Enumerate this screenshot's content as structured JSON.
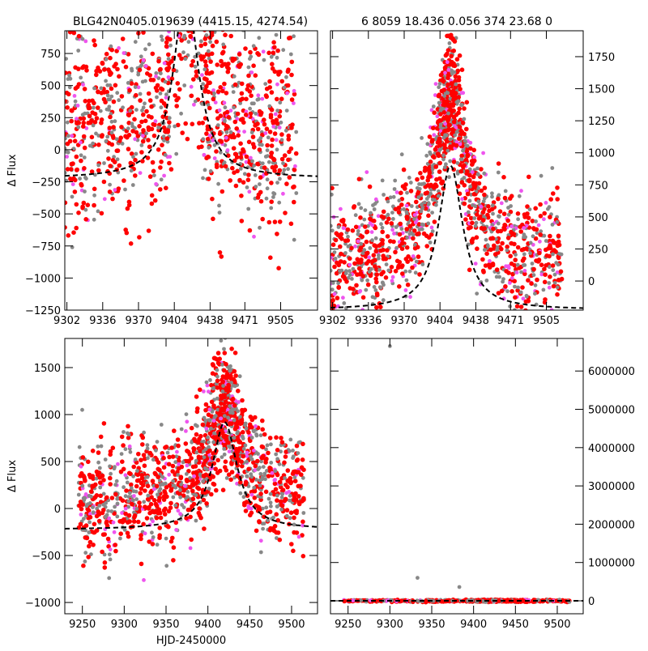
{
  "title_left": "BLG42N0405.019639 (4415.15, 4274.54)",
  "title_right": "6 8059 18.436 0.056 374 23.68    0",
  "colors": {
    "gray": "#888888",
    "magenta": "#ee55ee",
    "red": "#ff0000",
    "model": "#000000"
  },
  "chart_data": [
    {
      "type": "scatter",
      "panel": "top-left",
      "ylabel": "Δ Flux",
      "xlabel": "",
      "xlim": [
        9300,
        9540
      ],
      "ylim": [
        -1250,
        927
      ],
      "xticks": [
        9302,
        9336,
        9370,
        9404,
        9438,
        9471,
        9505
      ],
      "xtick_labels": [
        "9302",
        "9336",
        "9370",
        "9404",
        "9438",
        "9471",
        "9505"
      ],
      "yticks": [
        750,
        500,
        250,
        0,
        -250,
        -500,
        -750,
        -1000,
        -1250
      ],
      "ytick_labels": [
        "750",
        "500",
        "250",
        "0",
        "−250",
        "−500",
        "−750",
        "−1000",
        "−1250"
      ],
      "ytick_side": "left",
      "model": {
        "t0": 9415,
        "tE": 14,
        "baseline": -225,
        "peak": 1250
      },
      "scatter": {
        "x_range": [
          9300,
          9520
        ],
        "y_center": 150,
        "y_spread": 550,
        "peak_boost": 700,
        "gap": [
          9400,
          9430
        ]
      }
    },
    {
      "type": "scatter",
      "panel": "top-right",
      "ylabel": "",
      "xlabel": "",
      "xlim": [
        9300,
        9540
      ],
      "ylim": [
        -227,
        1952
      ],
      "xticks": [
        9302,
        9336,
        9370,
        9404,
        9438,
        9471,
        9505
      ],
      "xtick_labels": [
        "9302",
        "9336",
        "9370",
        "9404",
        "9438",
        "9471",
        "9505"
      ],
      "yticks": [
        1750,
        1500,
        1250,
        1000,
        750,
        500,
        250,
        0
      ],
      "ytick_labels": [
        "1750",
        "1500",
        "1250",
        "1000",
        "750",
        "500",
        "250",
        "0"
      ],
      "ytick_side": "right",
      "model": {
        "t0": 9414,
        "tE": 14,
        "baseline": -225,
        "peak": 900
      },
      "scatter": {
        "x_range": [
          9300,
          9520
        ],
        "y_center": 150,
        "y_spread": 350,
        "peak_boost": 1300,
        "gap": null
      }
    },
    {
      "type": "scatter",
      "panel": "bottom-left",
      "ylabel": "Δ Flux",
      "xlabel": "HJD-2450000",
      "xlim": [
        9229,
        9531
      ],
      "ylim": [
        -1120,
        1810
      ],
      "xticks": [
        9250,
        9300,
        9350,
        9400,
        9450,
        9500
      ],
      "xtick_labels": [
        "9250",
        "9300",
        "9350",
        "9400",
        "9450",
        "9500"
      ],
      "yticks": [
        1500,
        1000,
        500,
        0,
        -500,
        -1000
      ],
      "ytick_labels": [
        "1500",
        "1000",
        "500",
        "0",
        "−500",
        "−1000"
      ],
      "ytick_side": "left",
      "model": {
        "t0": 9420,
        "tE": 18,
        "baseline": -225,
        "peak": 920
      },
      "scatter": {
        "x_range": [
          9245,
          9515
        ],
        "y_center": 100,
        "y_spread": 450,
        "peak_boost": 1000,
        "gap": null
      }
    },
    {
      "type": "scatter",
      "panel": "bottom-right",
      "ylabel": "",
      "xlabel": "",
      "xlim": [
        9229,
        9531
      ],
      "ylim": [
        -338000,
        6850000
      ],
      "xticks": [
        9250,
        9300,
        9350,
        9400,
        9450,
        9500
      ],
      "xtick_labels": [
        "9250",
        "9300",
        "9350",
        "9400",
        "9450",
        "9500"
      ],
      "yticks": [
        6000000,
        5000000,
        4000000,
        3000000,
        2000000,
        1000000,
        0
      ],
      "ytick_labels": [
        "6000000",
        "5000000",
        "4000000",
        "3000000",
        "2000000",
        "1000000",
        "0"
      ],
      "ytick_side": "right",
      "model": {
        "t0": 9420,
        "tE": 18,
        "baseline": 0,
        "peak": 900
      },
      "scatter": {
        "x_range": [
          9245,
          9515
        ],
        "y_center": 0,
        "y_spread": 20000,
        "peak_boost": 0,
        "gap": null
      },
      "outliers": [
        [
          9300,
          6650000
        ],
        [
          9333,
          600000
        ],
        [
          9383,
          360000
        ]
      ]
    }
  ]
}
